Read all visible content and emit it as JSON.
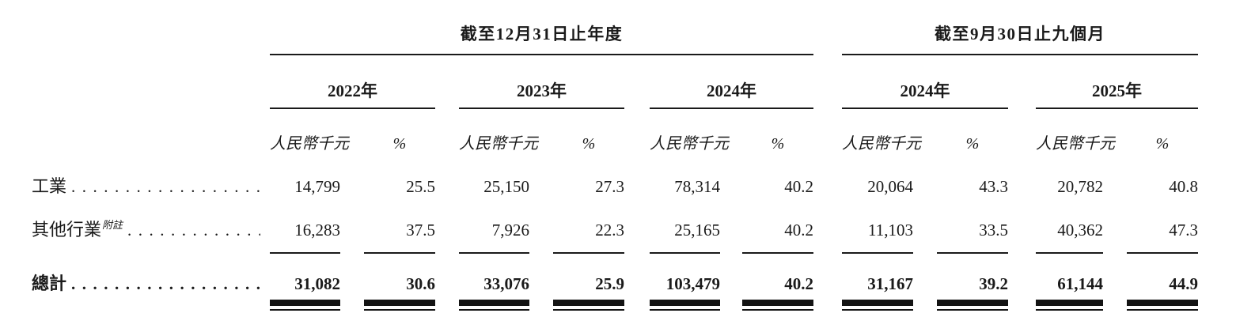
{
  "page": {
    "background": "#ffffff",
    "text_color": "#1a1a1a"
  },
  "table": {
    "groups": [
      {
        "title": "截至12月31日止年度",
        "years": [
          "2022年",
          "2023年",
          "2024年"
        ]
      },
      {
        "title": "截至9月30日止九個月",
        "years": [
          "2024年",
          "2025年"
        ]
      }
    ],
    "column_headers": {
      "amount": "人民幣千元",
      "percent": "%"
    },
    "rows": [
      {
        "label": "工業",
        "leader": "..............................",
        "values": [
          "14,799",
          "25.5",
          "25,150",
          "27.3",
          "78,314",
          "40.2",
          "20,064",
          "43.3",
          "20,782",
          "40.8"
        ]
      },
      {
        "label": "其他行業",
        "note": "附註",
        "leader": "..............................",
        "values": [
          "16,283",
          "37.5",
          "7,926",
          "22.3",
          "25,165",
          "40.2",
          "11,103",
          "33.5",
          "40,362",
          "47.3"
        ]
      },
      {
        "label": "總計",
        "leader": "..............................",
        "values": [
          "31,082",
          "30.6",
          "33,076",
          "25.9",
          "103,479",
          "40.2",
          "31,167",
          "39.2",
          "61,144",
          "44.9"
        ]
      }
    ]
  }
}
